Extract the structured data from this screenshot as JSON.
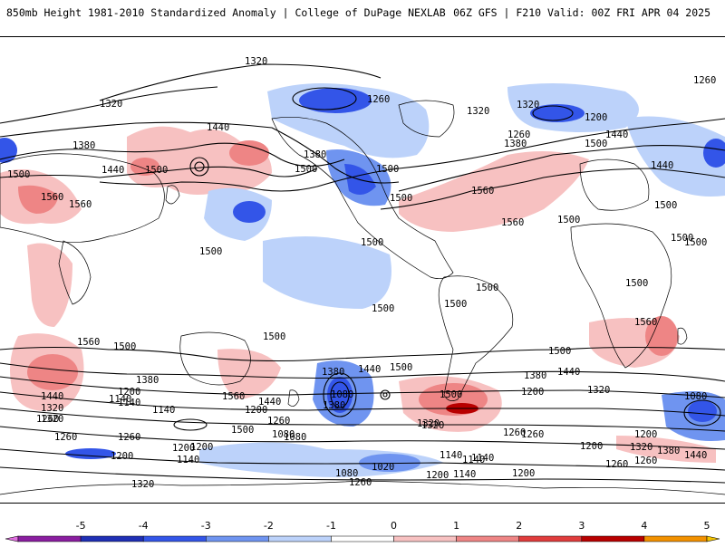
{
  "header": {
    "left": "850mb Height 1981-2010 Standardized Anomaly | College of DuPage NEXLAB",
    "right": "06Z GFS | F210 Valid: 00Z FRI APR 04 2025"
  },
  "contour_labels": [
    "1320",
    "1320",
    "1260",
    "1320",
    "1380",
    "1440",
    "1500",
    "1440",
    "1500",
    "1380",
    "1500",
    "1560",
    "1560",
    "1500",
    "1260",
    "1320",
    "1200",
    "1380",
    "1260",
    "1500",
    "1440",
    "1500",
    "1560",
    "1560",
    "1500",
    "1500",
    "1500",
    "1500",
    "1500",
    "1500",
    "1500",
    "1500",
    "1500",
    "1560",
    "1500",
    "1500",
    "1440",
    "1380",
    "1320",
    "1260",
    "1200",
    "1140",
    "1080",
    "1560",
    "1440",
    "1320",
    "1260",
    "1380",
    "1200",
    "1140",
    "1080",
    "1140",
    "1200",
    "1260",
    "1440",
    "1500",
    "1380",
    "1320",
    "1260",
    "1200",
    "1500",
    "1440",
    "1380",
    "1320",
    "1200",
    "1260",
    "1140",
    "1080",
    "1260",
    "1200",
    "1140",
    "1080",
    "1020",
    "1200",
    "1140",
    "1080",
    "1260",
    "1320",
    "1320",
    "1380",
    "1440",
    "1200",
    "1260",
    "1500",
    "1560",
    "1500",
    "1440",
    "1500",
    "1140",
    "1200",
    "1200",
    "1260",
    "1320",
    "1140"
  ],
  "colorbar": {
    "ticks": [
      "-5",
      "-4",
      "-3",
      "-2",
      "-1",
      "0",
      "1",
      "2",
      "3",
      "4",
      "5"
    ],
    "colors": [
      "#e070e0",
      "#8a1ea0",
      "#1f2fb5",
      "#3355e8",
      "#6f94f0",
      "#bcd2fa",
      "#ffffff",
      "#f7c1c1",
      "#ee8585",
      "#e03c3c",
      "#b80000",
      "#f29100",
      "#f4c400"
    ]
  }
}
